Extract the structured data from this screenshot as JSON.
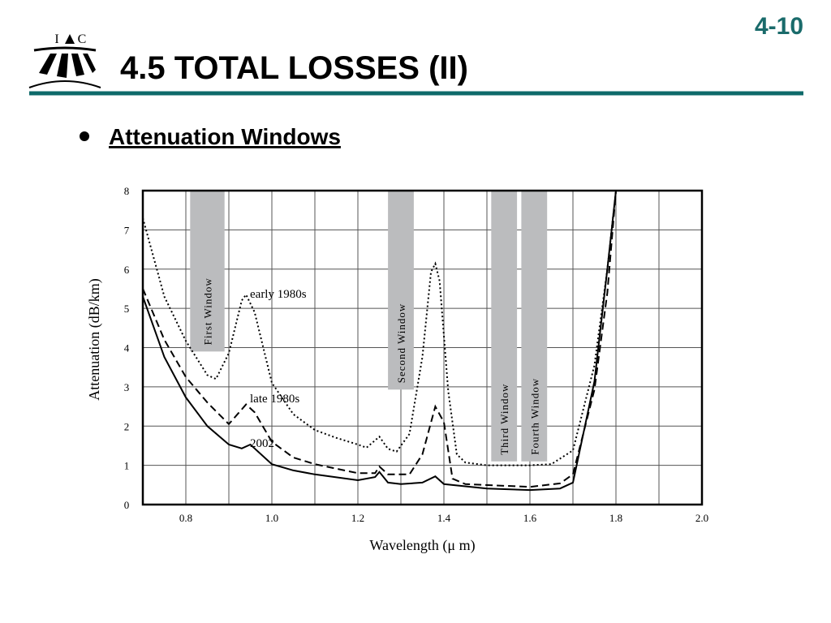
{
  "header": {
    "page_number": "4-10",
    "title": "4.5 TOTAL LOSSES (II)",
    "logo_left": "I",
    "logo_right": "C"
  },
  "bullet": "Attenuation Windows",
  "chart_data": {
    "type": "line",
    "x_label": "Wavelength (μ m)",
    "y_label": "Attenuation (dB/km)",
    "xlim": [
      0.7,
      2.0
    ],
    "ylim": [
      0,
      8
    ],
    "xticks": [
      0.8,
      {
        "value": 1,
        "label": "1.0"
      },
      1.2,
      1.4,
      1.6,
      1.8,
      {
        "value": 2,
        "label": "2.0"
      }
    ],
    "x_minor_grid": [
      0.9,
      1.1,
      1.3,
      1.5,
      1.7,
      1.9
    ],
    "yticks": [
      0,
      1,
      2,
      3,
      4,
      5,
      6,
      7,
      8
    ],
    "grid": true,
    "windows": [
      {
        "label": "First Window",
        "x_range": [
          0.81,
          0.89
        ],
        "y_range": [
          3.9,
          8
        ],
        "color": "#bbbcbe"
      },
      {
        "label": "Second Window",
        "x_range": [
          1.27,
          1.33
        ],
        "y_range": [
          2.93,
          8
        ],
        "color": "#bbbcbe"
      },
      {
        "label": "Third Window",
        "x_range": [
          1.51,
          1.57
        ],
        "y_range": [
          1.1,
          8
        ],
        "color": "#bbbcbe"
      },
      {
        "label": "Fourth Window",
        "x_range": [
          1.58,
          1.64
        ],
        "y_range": [
          1.1,
          8
        ],
        "color": "#bbbcbe"
      }
    ],
    "series": [
      {
        "name": "early 1980s",
        "color": "#000000",
        "style": "dotted",
        "x": [
          0.7,
          0.75,
          0.8,
          0.85,
          0.87,
          0.9,
          0.93,
          0.94,
          0.96,
          1.0,
          1.05,
          1.1,
          1.15,
          1.2,
          1.22,
          1.25,
          1.27,
          1.29,
          1.32,
          1.35,
          1.37,
          1.38,
          1.39,
          1.41,
          1.43,
          1.45,
          1.5,
          1.6,
          1.65,
          1.7,
          1.75,
          1.78,
          1.8
        ],
        "values": [
          7.3,
          5.3,
          4.17,
          3.3,
          3.2,
          3.86,
          5.2,
          5.35,
          4.9,
          3.1,
          2.3,
          1.9,
          1.7,
          1.53,
          1.45,
          1.73,
          1.42,
          1.35,
          1.8,
          3.76,
          5.93,
          6.14,
          5.7,
          2.9,
          1.28,
          1.07,
          1.0,
          1.0,
          1.03,
          1.38,
          3.55,
          6.0,
          8.0
        ]
      },
      {
        "name": "late 1980s",
        "color": "#000000",
        "style": "dashed",
        "x": [
          0.7,
          0.75,
          0.8,
          0.85,
          0.9,
          0.92,
          0.94,
          0.96,
          1.0,
          1.05,
          1.1,
          1.2,
          1.24,
          1.25,
          1.27,
          1.32,
          1.35,
          1.38,
          1.4,
          1.42,
          1.45,
          1.6,
          1.67,
          1.7,
          1.75,
          1.78,
          1.8
        ],
        "values": [
          5.5,
          4.2,
          3.25,
          2.6,
          2.05,
          2.3,
          2.55,
          2.35,
          1.6,
          1.2,
          1.03,
          0.8,
          0.8,
          0.97,
          0.77,
          0.77,
          1.28,
          2.5,
          2.1,
          0.66,
          0.52,
          0.45,
          0.54,
          0.77,
          2.93,
          5.4,
          8.0
        ]
      },
      {
        "name": "2002",
        "color": "#000000",
        "style": "solid",
        "x": [
          0.7,
          0.75,
          0.8,
          0.85,
          0.9,
          0.93,
          0.95,
          1.0,
          1.05,
          1.1,
          1.2,
          1.24,
          1.25,
          1.27,
          1.3,
          1.35,
          1.38,
          1.4,
          1.5,
          1.6,
          1.67,
          1.7,
          1.75,
          1.78,
          1.8
        ],
        "values": [
          5.3,
          3.76,
          2.73,
          2.0,
          1.53,
          1.43,
          1.53,
          1.03,
          0.87,
          0.77,
          0.62,
          0.7,
          0.83,
          0.56,
          0.52,
          0.56,
          0.72,
          0.52,
          0.41,
          0.37,
          0.41,
          0.56,
          3.14,
          6.0,
          8.0
        ]
      }
    ]
  }
}
